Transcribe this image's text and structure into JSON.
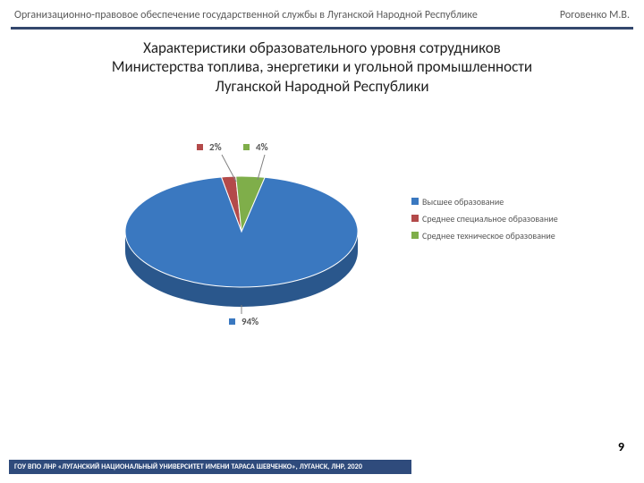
{
  "header": {
    "left": "Организационно-правовое обеспечение государственной службы в Луганской Народной Республике",
    "right": "Роговенко М.В.",
    "rule_color": "#33476d"
  },
  "title": {
    "line1": "Характеристики образовательного уровня сотрудников",
    "line2": "Министерства топлива, энергетики и угольной промышленности",
    "line3": "Луганской Народной Республики",
    "fontsize": 17,
    "color": "#222222"
  },
  "chart": {
    "type": "pie-3d",
    "background_color": "#ffffff",
    "series": [
      {
        "label": "Высшее образование",
        "value": 94,
        "color_top": "#3a78c0",
        "color_side": "#2a578c",
        "label_text": "94%"
      },
      {
        "label": "Среднее специальное образование",
        "value": 2,
        "color_top": "#b34a4a",
        "color_side": "#823636",
        "label_text": "2%"
      },
      {
        "label": "Среднее техническое образование",
        "value": 4,
        "color_top": "#7fae4a",
        "color_side": "#5d8036",
        "label_text": "4%"
      }
    ],
    "legend_fontsize": 10,
    "legend_color": "#595959",
    "datalabel_fontsize": 11,
    "datalabel_color": "#595959",
    "leader_color": "#808080"
  },
  "page_number": "9",
  "footer": {
    "text": "ГОУ ВПО ЛНР «ЛУГАНСКИЙ НАЦИОНАЛЬНЫЙ УНИВЕРСИТЕТ ИМЕНИ ТАРАСА ШЕВЧЕНКО», ЛУГАНСК, ЛНР, 2020",
    "bg": "#2f4b7c",
    "fg": "#ffffff"
  }
}
